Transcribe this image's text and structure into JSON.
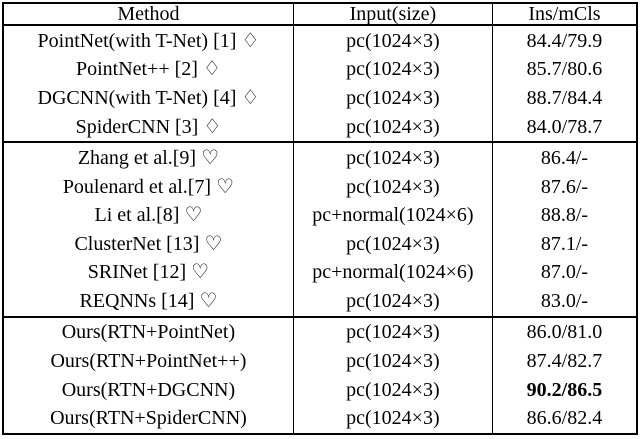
{
  "table": {
    "headers": [
      "Method",
      "Input(size)",
      "Ins/mCls"
    ],
    "sections": [
      {
        "rows": [
          {
            "method": "PointNet(with T-Net) [1] ♢",
            "input": "pc(1024×3)",
            "score": "84.4/79.9"
          },
          {
            "method": "PointNet++ [2] ♢",
            "input": "pc(1024×3)",
            "score": "85.7/80.6"
          },
          {
            "method": "DGCNN(with T-Net) [4] ♢",
            "input": "pc(1024×3)",
            "score": "88.7/84.4"
          },
          {
            "method": "SpiderCNN [3] ♢",
            "input": "pc(1024×3)",
            "score": "84.0/78.7"
          }
        ]
      },
      {
        "rows": [
          {
            "method": "Zhang et al.[9] ♡",
            "input": "pc(1024×3)",
            "score": "86.4/-"
          },
          {
            "method": "Poulenard et al.[7] ♡",
            "input": "pc(1024×3)",
            "score": "87.6/-"
          },
          {
            "method": "Li et al.[8] ♡",
            "input": "pc+normal(1024×6)",
            "score": "88.8/-"
          },
          {
            "method": "ClusterNet [13] ♡",
            "input": "pc(1024×3)",
            "score": "87.1/-"
          },
          {
            "method": "SRINet [12] ♡",
            "input": "pc+normal(1024×6)",
            "score": "87.0/-"
          },
          {
            "method": "REQNNs [14] ♡",
            "input": "pc(1024×3)",
            "score": "83.0/-"
          }
        ]
      },
      {
        "rows": [
          {
            "method": "Ours(RTN+PointNet)",
            "input": "pc(1024×3)",
            "score": "86.0/81.0"
          },
          {
            "method": "Ours(RTN+PointNet++)",
            "input": "pc(1024×3)",
            "score": "87.4/82.7"
          },
          {
            "method": "Ours(RTN+DGCNN)",
            "input": "pc(1024×3)",
            "score": "90.2/86.5",
            "best": true
          },
          {
            "method": "Ours(RTN+SpiderCNN)",
            "input": "pc(1024×3)",
            "score": "86.6/82.4"
          }
        ]
      }
    ]
  }
}
